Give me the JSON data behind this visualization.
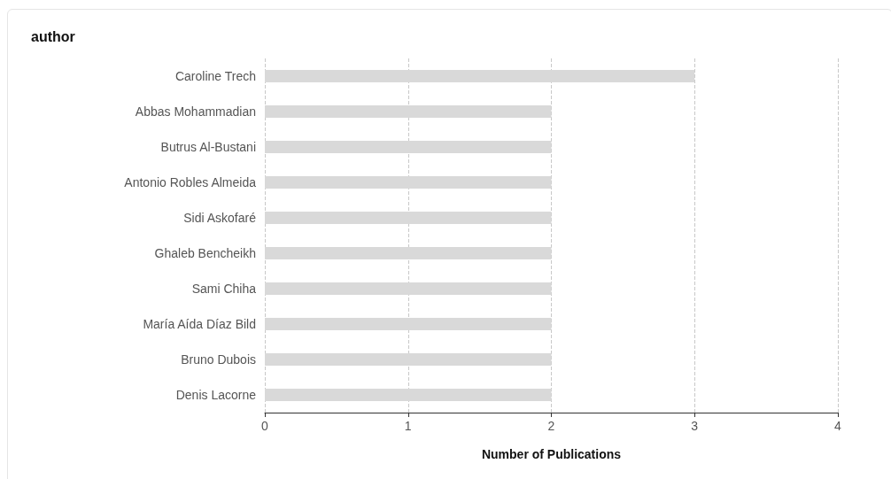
{
  "chart_data": {
    "type": "bar",
    "orientation": "horizontal",
    "title": "author",
    "xlabel": "Number of Publications",
    "categories": [
      "Caroline Trech",
      "Abbas Mohammadian",
      "Butrus Al-Bustani",
      "Antonio Robles Almeida",
      "Sidi Askofaré",
      "Ghaleb Bencheikh",
      "Sami Chiha",
      "María Aída Díaz Bild",
      "Bruno Dubois",
      "Denis Lacorne"
    ],
    "values": [
      3,
      2,
      2,
      2,
      2,
      2,
      2,
      2,
      2,
      2
    ],
    "color": "#d9d9d9",
    "xlim": [
      0,
      4
    ],
    "xticks": [
      0,
      1,
      2,
      3,
      4
    ],
    "grid": "x"
  }
}
